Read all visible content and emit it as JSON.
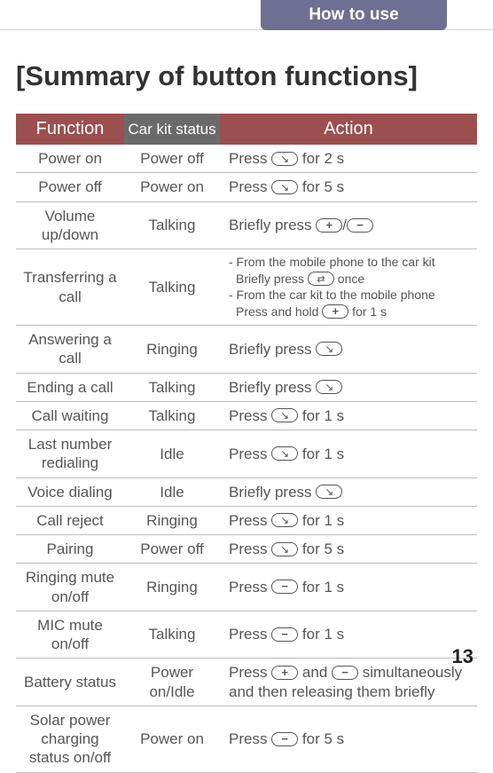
{
  "tab": "How to use",
  "title": "[Summary of button functions]",
  "pageNumber": "13",
  "headers": {
    "c1": "Function",
    "c2": "Car kit status",
    "c3": "Action"
  },
  "rows": [
    {
      "fn": "Power on",
      "st": "Power off",
      "a1": "Press ",
      "i1": "phone",
      "a2": " for 2 s"
    },
    {
      "fn": "Power off",
      "st": "Power on",
      "a1": "Press ",
      "i1": "phone",
      "a2": " for 5 s"
    },
    {
      "fn": "Volume up/down",
      "fnSize": "small",
      "st": "Talking",
      "a1": "Briefly press ",
      "i1": "plus",
      "a2": "/",
      "i2": "minus"
    },
    {
      "fn": "Transferring a call",
      "st": "Talking",
      "multi": true,
      "l1a": "- From the mobile phone to the car kit",
      "l2a": "Briefly press ",
      "l2i": "transfer",
      "l2b": " once",
      "l3a": "- From the car kit to the mobile phone",
      "l4a": "Press and hold ",
      "l4i": "plus",
      "l4b": " for 1 s"
    },
    {
      "fn": "Answering a call",
      "fnSize": "small",
      "st": "Ringing",
      "a1": "Briefly press ",
      "i1": "phone"
    },
    {
      "fn": "Ending a call",
      "st": "Talking",
      "a1": "Briefly press ",
      "i1": "phone"
    },
    {
      "fn": "Call waiting",
      "st": "Talking",
      "a1": "Press ",
      "i1": "phone",
      "a2": " for 1 s"
    },
    {
      "fn": "Last number redialing",
      "st": "Idle",
      "a1": "Press ",
      "i1": "phone",
      "a2": " for 1 s"
    },
    {
      "fn": "Voice dialing",
      "st": "Idle",
      "a1": "Briefly press ",
      "i1": "phone"
    },
    {
      "fn": "Call reject",
      "st": "Ringing",
      "a1": "Press ",
      "i1": "phone",
      "a2": " for 1 s"
    },
    {
      "fn": "Pairing",
      "st": "Power off",
      "a1": "Press ",
      "i1": "phone",
      "a2": " for 5 s"
    },
    {
      "fn": "Ringing mute on/off",
      "fnSize": "smaller",
      "st": "Ringing",
      "a1": "Press ",
      "i1": "minus",
      "a2": " for 1 s"
    },
    {
      "fn": "MIC mute on/off",
      "fnSize": "small",
      "st": "Talking",
      "a1": "Press ",
      "i1": "minus",
      "a2": " for 1 s"
    },
    {
      "fn": "Battery status",
      "st": "Power on/Idle",
      "stSize": "small",
      "a1": "Press ",
      "i1": "plus",
      "a2": " and ",
      "i2": "minus",
      "a3": " simultaneously and then releasing them briefly"
    },
    {
      "fn": "Solar power charging status on/off",
      "st": "Power on",
      "a1": "Press  ",
      "i1": "minus",
      "a2": " for 5 s"
    }
  ]
}
